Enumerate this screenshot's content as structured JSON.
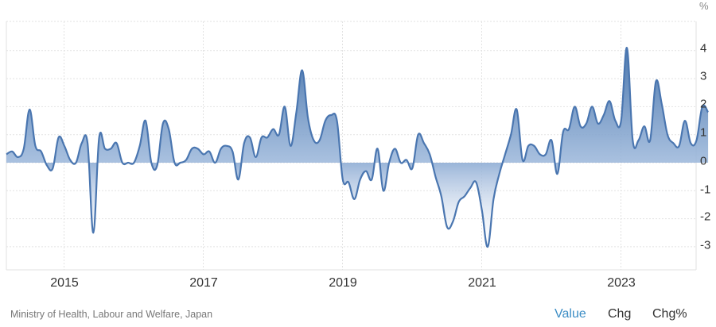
{
  "chart_data": {
    "type": "area",
    "title": "",
    "xlabel": "",
    "ylabel": "%",
    "ylim": [
      -3.9,
      5
    ],
    "yticks": [
      4,
      3,
      2,
      1,
      0,
      -1,
      -2,
      -3
    ],
    "xticks": [
      "2015",
      "2017",
      "2019",
      "2021",
      "2023"
    ],
    "grid": true,
    "legend": null,
    "series": [
      {
        "name": "Value",
        "start": "2014-04",
        "frequency": "monthly",
        "values": [
          0.3,
          0.4,
          0.2,
          0.5,
          1.9,
          0.6,
          0.4,
          -0.1,
          -0.2,
          0.9,
          0.6,
          0.1,
          0.0,
          0.7,
          0.7,
          -2.5,
          0.9,
          0.5,
          0.5,
          0.7,
          0.0,
          0.0,
          0.0,
          0.6,
          1.5,
          0.0,
          -0.1,
          1.4,
          1.2,
          0.0,
          0.0,
          0.1,
          0.5,
          0.5,
          0.3,
          0.4,
          0.0,
          0.5,
          0.6,
          0.4,
          -0.6,
          0.7,
          0.9,
          0.2,
          0.9,
          0.9,
          1.2,
          1.0,
          2.0,
          0.6,
          1.8,
          3.3,
          1.6,
          0.8,
          0.8,
          1.5,
          1.7,
          1.5,
          -0.6,
          -0.7,
          -1.3,
          -0.6,
          -0.3,
          -0.6,
          0.5,
          -1.0,
          0.0,
          0.5,
          0.0,
          0.1,
          -0.2,
          1.0,
          0.7,
          0.3,
          -0.5,
          -1.2,
          -2.3,
          -2.1,
          -1.4,
          -1.2,
          -0.9,
          -0.7,
          -1.7,
          -3.0,
          -1.3,
          -0.4,
          0.3,
          1.0,
          1.9,
          0.1,
          0.6,
          0.6,
          0.3,
          0.3,
          0.8,
          -0.4,
          1.1,
          1.2,
          2.0,
          1.3,
          1.4,
          2.0,
          1.4,
          1.7,
          2.2,
          1.5,
          1.5,
          4.1,
          0.8,
          0.8,
          1.3,
          0.8,
          2.9,
          2.1,
          1.0,
          0.7,
          0.6,
          1.5,
          0.7,
          0.8,
          2.0,
          1.8
        ]
      }
    ]
  },
  "axis": {
    "unit": "%",
    "y_labels": [
      "4",
      "3",
      "2",
      "1",
      "0",
      "-1",
      "-2",
      "-3"
    ],
    "x_labels": [
      "2015",
      "2017",
      "2019",
      "2021",
      "2023"
    ]
  },
  "footer": {
    "source": "Ministry of Health, Labour and Welfare, Japan",
    "toggles": [
      {
        "label": "Value",
        "active": true
      },
      {
        "label": "Chg",
        "active": false
      },
      {
        "label": "Chg%",
        "active": false
      }
    ]
  },
  "colors": {
    "line": "#4a76b0",
    "fill_top": "#4a76b0",
    "fill_bottom": "#ffffff",
    "active_toggle": "#3c8dc5",
    "grid": "#e2e2e2"
  }
}
